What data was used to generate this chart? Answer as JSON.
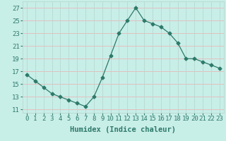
{
  "x": [
    0,
    1,
    2,
    3,
    4,
    5,
    6,
    7,
    8,
    9,
    10,
    11,
    12,
    13,
    14,
    15,
    16,
    17,
    18,
    19,
    20,
    21,
    22,
    23
  ],
  "y": [
    16.5,
    15.5,
    14.5,
    13.5,
    13.0,
    12.5,
    12.0,
    11.5,
    13.0,
    16.0,
    19.5,
    23.0,
    25.0,
    27.0,
    25.0,
    24.5,
    24.0,
    23.0,
    21.5,
    19.0,
    19.0,
    18.5,
    18.0,
    17.5
  ],
  "line_color": "#2d7a6a",
  "marker": "D",
  "marker_size": 2.5,
  "bg_color": "#c8eee8",
  "grid_color_h": "#e8b8b8",
  "grid_color_v": "#b8d8d0",
  "xlabel": "Humidex (Indice chaleur)",
  "xlim": [
    -0.5,
    23.5
  ],
  "ylim": [
    10.5,
    28.0
  ],
  "yticks": [
    11,
    13,
    15,
    17,
    19,
    21,
    23,
    25,
    27
  ],
  "xticks": [
    0,
    1,
    2,
    3,
    4,
    5,
    6,
    7,
    8,
    9,
    10,
    11,
    12,
    13,
    14,
    15,
    16,
    17,
    18,
    19,
    20,
    21,
    22,
    23
  ],
  "xlabel_fontsize": 7.5,
  "tick_fontsize": 6.5
}
